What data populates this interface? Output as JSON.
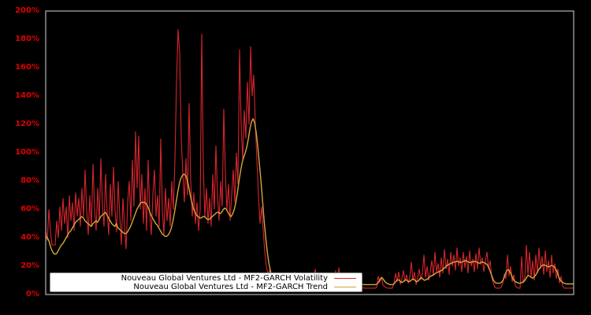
{
  "figure": {
    "background_color": "#000000",
    "frame_color": "#b3b3b3",
    "tick_label_color": "#dd0000",
    "y_ticks": [
      "0%",
      "20%",
      "40%",
      "60%",
      "80%",
      "100%",
      "120%",
      "140%",
      "160%",
      "180%",
      "200%"
    ]
  },
  "legend": {
    "entries": [
      {
        "label": "Nouveau Global Ventures Ltd - MF2-GARCH Volatility",
        "color": "#d6252d"
      },
      {
        "label": "Nouveau Global Ventures Ltd - MF2-GARCH Trend",
        "color": "#d2a73a"
      }
    ]
  },
  "chart_data": {
    "type": "line",
    "title": "",
    "xlabel": "",
    "ylabel": "",
    "x_axis_labels_visible": false,
    "ylim": [
      0,
      200
    ],
    "y_unit": "percent",
    "grid": false,
    "legend_position": "lower-left-inside",
    "series": [
      {
        "name": "Nouveau Global Ventures Ltd - MF2-GARCH Volatility",
        "color": "#d6252d",
        "line_width": 1.1,
        "values": [
          45,
          38,
          60,
          45,
          35,
          35,
          35,
          52,
          40,
          62,
          45,
          68,
          50,
          62,
          40,
          70,
          52,
          65,
          45,
          72,
          55,
          68,
          48,
          75,
          55,
          88,
          60,
          42,
          70,
          48,
          92,
          60,
          45,
          75,
          52,
          96,
          62,
          48,
          85,
          58,
          42,
          78,
          55,
          90,
          60,
          44,
          80,
          55,
          35,
          68,
          48,
          32,
          65,
          80,
          52,
          95,
          62,
          115,
          75,
          112,
          60,
          85,
          50,
          75,
          45,
          95,
          58,
          42,
          70,
          88,
          55,
          70,
          48,
          110,
          60,
          42,
          75,
          52,
          68,
          48,
          80,
          60,
          95,
          150,
          187,
          170,
          110,
          85,
          65,
          96,
          70,
          135,
          80,
          55,
          72,
          50,
          65,
          45,
          60,
          184,
          90,
          55,
          75,
          50,
          68,
          48,
          85,
          60,
          105,
          70,
          52,
          80,
          62,
          131,
          85,
          60,
          78,
          52,
          70,
          88,
          65,
          100,
          78,
          173,
          120,
          95,
          130,
          110,
          150,
          120,
          175,
          140,
          155,
          120,
          95,
          70,
          50,
          62,
          45,
          30,
          20,
          14,
          17,
          10,
          8,
          12,
          7,
          6,
          9,
          6,
          5.5,
          5,
          14,
          6,
          5,
          10,
          5,
          5,
          16,
          6,
          5,
          9,
          5,
          5,
          13,
          5,
          5,
          8,
          5,
          15,
          7,
          18,
          8,
          5,
          5,
          11,
          5,
          5,
          14,
          6,
          5,
          5,
          12,
          5,
          17,
          7,
          19,
          8,
          14,
          6,
          5,
          5,
          10,
          5,
          5,
          12,
          5,
          5,
          8,
          5,
          5,
          5,
          4.5,
          4.5,
          4.5,
          4.5,
          4.5,
          4.5,
          4.5,
          4.5,
          5,
          13,
          9,
          12,
          7,
          5.5,
          5,
          4.5,
          4.5,
          4.5,
          4.5,
          8,
          15,
          9,
          16,
          7,
          11,
          17,
          9,
          14,
          8,
          12,
          23,
          10,
          16,
          7,
          12,
          18,
          10,
          15,
          28,
          12,
          20,
          10,
          16,
          24,
          13,
          30,
          16,
          22,
          12,
          26,
          15,
          32,
          18,
          25,
          14,
          30,
          20,
          28,
          17,
          33,
          20,
          26,
          16,
          30,
          19,
          27,
          15,
          31,
          20,
          25,
          16,
          29,
          18,
          33,
          21,
          26,
          16,
          24,
          30,
          18,
          24,
          12,
          8,
          5,
          4.5,
          4.5,
          4.5,
          5,
          8,
          14,
          11,
          28,
          13,
          20,
          9,
          14,
          6,
          5,
          4.5,
          4.5,
          27,
          8,
          12,
          35,
          14,
          30,
          12,
          24,
          10,
          28,
          15,
          33,
          18,
          27,
          14,
          31,
          16,
          24,
          12,
          28,
          15,
          22,
          11,
          18,
          8,
          13,
          6,
          4.5,
          4.5,
          4.5,
          4.5,
          4.5,
          4.5,
          4.5
        ]
      },
      {
        "name": "Nouveau Global Ventures Ltd - MF2-GARCH Trend",
        "color": "#d2a73a",
        "line_width": 1.4,
        "values": [
          41,
          40,
          38,
          34,
          31,
          29,
          28.5,
          29,
          31,
          33,
          35,
          36,
          38,
          40,
          42,
          44,
          45,
          47,
          49,
          51,
          52,
          53,
          54,
          55,
          54,
          52,
          51,
          50,
          49,
          48,
          50,
          51,
          52,
          51,
          53,
          55,
          56,
          57,
          58,
          56,
          54,
          52,
          50,
          49,
          48,
          50,
          47,
          46,
          45,
          44,
          43,
          43,
          44,
          46,
          48,
          51,
          54,
          57,
          60,
          62,
          64,
          65,
          65,
          65,
          64,
          62,
          59,
          56,
          54,
          52,
          50,
          49,
          47,
          45,
          43,
          42,
          41,
          41,
          42,
          44,
          47,
          52,
          58,
          65,
          72,
          78,
          82,
          84,
          85,
          84,
          81,
          76,
          70,
          65,
          61,
          58,
          56,
          55,
          54,
          54,
          55,
          55,
          54,
          53,
          53,
          54,
          55,
          56,
          57,
          58,
          58,
          57,
          58,
          60,
          61,
          60,
          58,
          56,
          55,
          57,
          60,
          65,
          72,
          80,
          87,
          93,
          97,
          100,
          104,
          110,
          117,
          122,
          124,
          121,
          114,
          104,
          92,
          80,
          66,
          52,
          40,
          30,
          22,
          17,
          13,
          11,
          9.5,
          8.5,
          8,
          7.5,
          7.5,
          7.5,
          8,
          8,
          7.5,
          7.5,
          7.5,
          8,
          8.5,
          8,
          7.5,
          7.5,
          7.5,
          8,
          8,
          7.5,
          7.5,
          8,
          8.5,
          9,
          9.5,
          9,
          8.5,
          8,
          7.5,
          7.5,
          7.5,
          8,
          8,
          7.5,
          7.5,
          7.5,
          8,
          8.5,
          9,
          9.5,
          9.5,
          9,
          8.5,
          8.5,
          8,
          7.5,
          7.5,
          7.5,
          7.5,
          8,
          8,
          7.5,
          7.5,
          7.5,
          7.5,
          7.5,
          7,
          7,
          7,
          7,
          7,
          7,
          7,
          7,
          7,
          7.5,
          9,
          11,
          12,
          10.5,
          9,
          8,
          7.5,
          7,
          7,
          7,
          8,
          9.5,
          10.5,
          10,
          9,
          8.5,
          9.5,
          10.5,
          10,
          9,
          9.5,
          10.5,
          11,
          10,
          9,
          9.5,
          11,
          12,
          11,
          10,
          10.5,
          11,
          12,
          13,
          13.5,
          14,
          15,
          15.5,
          16,
          16.5,
          17,
          18,
          19,
          20,
          21,
          21.5,
          22,
          22.5,
          23,
          23,
          23.5,
          23,
          22.5,
          23,
          23.5,
          24,
          23.5,
          23,
          22.5,
          23,
          23,
          23.5,
          23,
          22.5,
          22,
          22.5,
          23,
          22.5,
          22,
          21,
          19,
          16,
          13,
          10,
          8.5,
          8,
          8,
          8,
          8.5,
          10,
          13,
          16,
          17.5,
          17,
          15,
          12,
          10,
          9,
          8.5,
          8,
          8,
          8.5,
          9,
          10,
          12,
          13.5,
          13,
          12,
          11.5,
          12.5,
          14,
          16,
          18,
          19.5,
          20.5,
          21,
          20.5,
          20,
          19.5,
          20,
          20.5,
          20,
          19,
          17,
          14,
          11,
          9.5,
          8.5,
          8,
          7.5,
          7.5,
          7.5,
          7.5,
          7.5,
          7.5
        ]
      }
    ]
  }
}
